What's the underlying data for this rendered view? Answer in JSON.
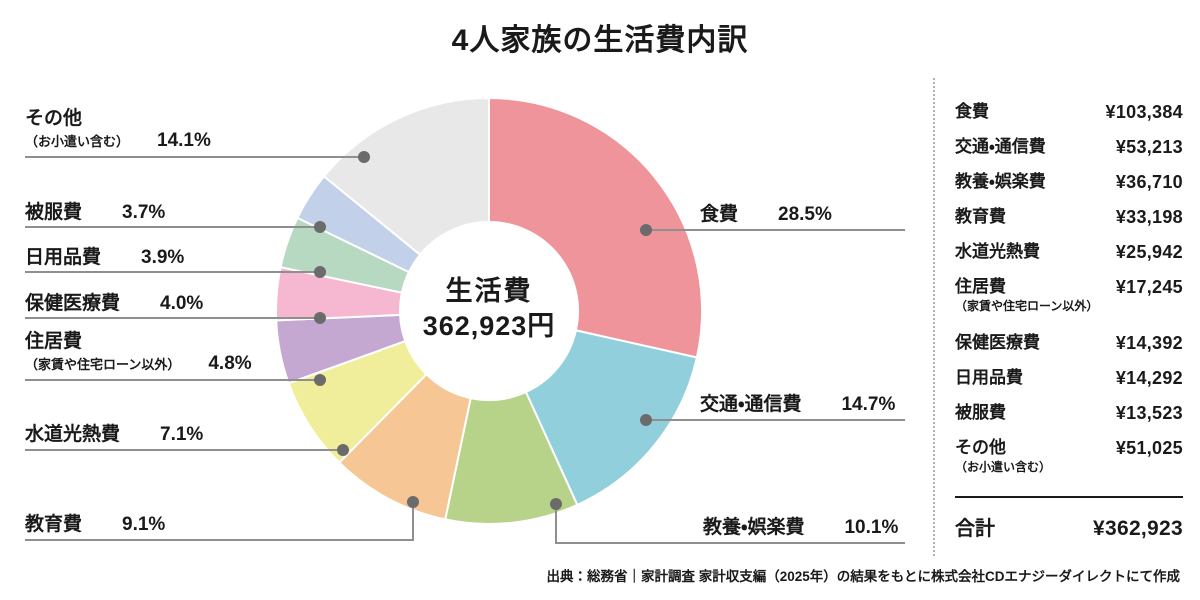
{
  "title": "4人家族の生活費内訳",
  "source": "出典：総務省｜家計調査 家計収支編（2025年）の結果をもとに株式会社CDエナジーダイレクトにて作成",
  "colors": {
    "leader_line": "#8f8f8f",
    "leader_dot": "#6b6b6b",
    "text": "#1a1a1a",
    "separator_dotted": "#b3b3b3"
  },
  "chart_data": {
    "type": "pie",
    "donut": true,
    "title": "4人家族の生活費内訳",
    "center_label": "生活費",
    "center_value": "362,923円",
    "start_angle_deg": 0,
    "direction": "clockwise",
    "inner_radius_ratio": 0.42,
    "segments": [
      {
        "label": "食費",
        "sublabel": "",
        "percent": 28.5,
        "percent_label": "28.5%",
        "amount": "¥103,384",
        "color": "#f0949b"
      },
      {
        "label": "交通・通信費",
        "sublabel": "",
        "percent": 14.7,
        "percent_label": "14.7%",
        "amount": "¥53,213",
        "color": "#92cfdc"
      },
      {
        "label": "教養・娯楽費",
        "sublabel": "",
        "percent": 10.1,
        "percent_label": "10.1%",
        "amount": "¥36,710",
        "color": "#b7d389"
      },
      {
        "label": "教育費",
        "sublabel": "",
        "percent": 9.1,
        "percent_label": "9.1%",
        "amount": "¥33,198",
        "color": "#f6c795"
      },
      {
        "label": "水道光熱費",
        "sublabel": "",
        "percent": 7.1,
        "percent_label": "7.1%",
        "amount": "¥25,942",
        "color": "#f1ee9b"
      },
      {
        "label": "住居費",
        "sublabel": "（家賃や住宅ローン以外）",
        "percent": 4.8,
        "percent_label": "4.8%",
        "amount": "¥17,245",
        "color": "#c4a8d2"
      },
      {
        "label": "保健医療費",
        "sublabel": "",
        "percent": 4.0,
        "percent_label": "4.0%",
        "amount": "¥14,392",
        "color": "#f5b8d0"
      },
      {
        "label": "日用品費",
        "sublabel": "",
        "percent": 3.9,
        "percent_label": "3.9%",
        "amount": "¥14,292",
        "color": "#b7d9c2"
      },
      {
        "label": "被服費",
        "sublabel": "",
        "percent": 3.7,
        "percent_label": "3.7%",
        "amount": "¥13,523",
        "color": "#c2d0ea"
      },
      {
        "label": "その他",
        "sublabel": "（お小遣い含む）",
        "percent": 14.1,
        "percent_label": "14.1%",
        "amount": "¥51,025",
        "color": "#e8e8e9"
      }
    ],
    "total": {
      "label": "合計",
      "amount": "¥362,923"
    }
  }
}
